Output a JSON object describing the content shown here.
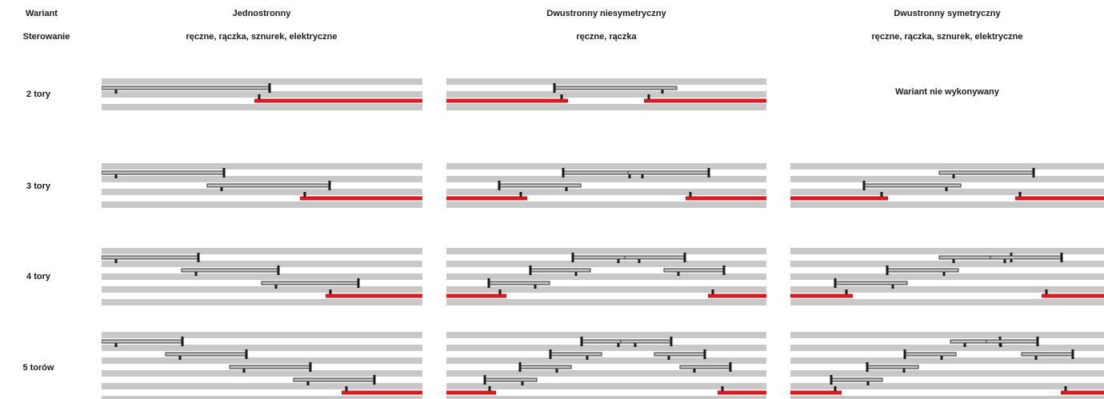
{
  "header": {
    "variant_label": "Wariant",
    "control_label": "Sterowanie",
    "columns": [
      {
        "title": "Jednostronny",
        "control": "ręczne, rączka, sznurek, elektryczne"
      },
      {
        "title": "Dwustronny niesymetryczny",
        "control": "ręczne, rączka"
      },
      {
        "title": "Dwustronny symetryczny",
        "control": "ręczne, rączka, sznurek, elektryczne"
      }
    ]
  },
  "rows": [
    {
      "label": "2 tory",
      "tracks": 2
    },
    {
      "label": "3 tory",
      "tracks": 3
    },
    {
      "label": "4 tory",
      "tracks": 4
    },
    {
      "label": "5 torów",
      "tracks": 5
    }
  ],
  "not_available": "Wariant nie wykonywany",
  "colors": {
    "track": "#c8c8c8",
    "panel_fill": "#bfbfbf",
    "panel_stroke": "#333333",
    "handle": "#1a1a1a",
    "fixed": "#d71920"
  }
}
